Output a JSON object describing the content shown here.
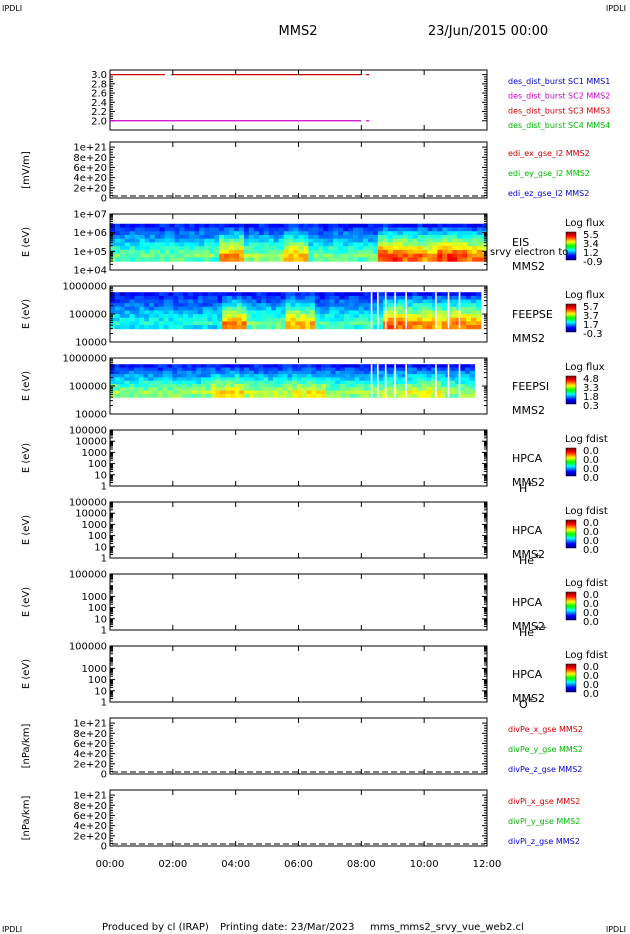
{
  "page": {
    "corner_tl": "IPDLI",
    "corner_tr": "IPDLI",
    "corner_bl": "IPDLI",
    "corner_br": "IPDLI",
    "spacecraft": "MMS2",
    "date": "23/Jun/2015 00:00",
    "footer_left": "Produced by cl (IRAP)",
    "footer_mid": "Printing date: 23/Mar/2023",
    "footer_right": "mms_mms2_srvy_vue_web2.cl"
  },
  "colors": {
    "red": "#cc0000",
    "magenta": "#cc00cc",
    "green": "#00bb00",
    "blue": "#0000cc",
    "dashed": "#000000"
  },
  "chart_data": [
    {
      "id": "burst",
      "type": "line",
      "ylim": [
        1.8,
        3.1
      ],
      "yticks": [
        "3.0",
        "2.8",
        "2.6",
        "2.4",
        "2.2",
        "2.0"
      ],
      "ytick_values": [
        3.0,
        2.8,
        2.6,
        2.4,
        2.2,
        2.0
      ],
      "ylabel": "",
      "legend": [
        {
          "text": "des_dist_burst SC1 MMS1",
          "color": "#0000cc"
        },
        {
          "text": "des_dist_burst SC2 MMS2",
          "color": "#cc00cc"
        },
        {
          "text": "des_dist_burst SC3 MMS3",
          "color": "#cc0000"
        },
        {
          "text": "des_dist_burst SC4 MMS4",
          "color": "#00bb00"
        }
      ],
      "series": [
        {
          "color": "#cc0000",
          "y": 3.0,
          "segments": [
            [
              0.0,
              1.75
            ],
            [
              1.95,
              8.0
            ],
            [
              8.15,
              8.25
            ]
          ]
        },
        {
          "color": "#cc00cc",
          "y": 2.0,
          "segments": [
            [
              0.0,
              8.0
            ],
            [
              8.15,
              8.25
            ]
          ]
        }
      ]
    },
    {
      "id": "edi",
      "type": "line",
      "ylim": [
        0,
        1.1e+21
      ],
      "yticks": [
        "1e+21",
        "8e+20",
        "6e+20",
        "4e+20",
        "2e+20",
        "0"
      ],
      "ytick_values": [
        1e+21,
        8e+20,
        6e+20,
        4e+20,
        2e+20,
        0
      ],
      "ylabel": "[mV/m]",
      "dashed_zero": true,
      "legend": [
        {
          "text": "edi_ex_gse_l2 MMS2",
          "color": "#cc0000"
        },
        {
          "text": "edi_ey_gse_l2 MMS2",
          "color": "#00bb00"
        },
        {
          "text": "edi_ez_gse_l2 MMS2",
          "color": "#0000cc"
        }
      ]
    },
    {
      "id": "eis",
      "type": "heatmap",
      "log": true,
      "ylim": [
        10000,
        10000000
      ],
      "yticks": [
        "1e+07",
        "1e+06",
        "1e+05",
        "1e+04"
      ],
      "ytick_values": [
        10000000.0,
        1000000.0,
        100000.0,
        10000.0
      ],
      "ylabel": "E (eV)",
      "colorbar_title": "Log flux",
      "colorbar_values": [
        "5.5",
        "3.4",
        "1.2",
        "-0.9"
      ],
      "instrument": "EIS",
      "instrument_sub": "srvy electron to",
      "spacecraft": "MMS2",
      "emin": 30000,
      "emax": 3000000,
      "data_end": 12.0,
      "intervals": [
        [
          0.0,
          3.4,
          0.55
        ],
        [
          3.4,
          4.2,
          0.85
        ],
        [
          4.2,
          5.5,
          0.6
        ],
        [
          5.5,
          6.3,
          0.8
        ],
        [
          6.3,
          8.6,
          0.55
        ],
        [
          8.6,
          9.3,
          0.95
        ],
        [
          9.3,
          10.0,
          0.9
        ],
        [
          10.0,
          10.5,
          0.85
        ],
        [
          10.5,
          11.3,
          0.95
        ],
        [
          11.3,
          12.0,
          0.88
        ]
      ]
    },
    {
      "id": "feepse",
      "type": "heatmap",
      "log": true,
      "ylim": [
        10000,
        1000000
      ],
      "yticks": [
        "1000000",
        "100000",
        "10000"
      ],
      "ytick_values": [
        1000000.0,
        100000.0,
        10000.0
      ],
      "ylabel": "E (eV)",
      "colorbar_title": "Log flux",
      "colorbar_values": [
        "5.7",
        "3.7",
        "1.7",
        "-0.3"
      ],
      "instrument": "FEEPSE",
      "spacecraft": "MMS2",
      "emin": 30000,
      "emax": 600000,
      "data_end": 11.8,
      "intervals": [
        [
          0.0,
          3.5,
          0.45
        ],
        [
          3.5,
          4.3,
          0.85
        ],
        [
          4.3,
          5.6,
          0.55
        ],
        [
          5.6,
          6.5,
          0.8
        ],
        [
          6.5,
          8.7,
          0.5
        ],
        [
          8.7,
          9.4,
          0.9
        ],
        [
          9.4,
          10.2,
          0.85
        ],
        [
          10.2,
          10.8,
          0.8
        ],
        [
          10.8,
          11.4,
          0.9
        ],
        [
          11.4,
          11.8,
          0.85
        ]
      ]
    },
    {
      "id": "feepsi",
      "type": "heatmap",
      "log": true,
      "ylim": [
        10000,
        1000000
      ],
      "yticks": [
        "1000000",
        "100000",
        "10000"
      ],
      "ytick_values": [
        1000000.0,
        100000.0,
        10000.0
      ],
      "ylabel": "E (eV)",
      "colorbar_title": "Log flux",
      "colorbar_values": [
        "4.8",
        "3.3",
        "1.8",
        "0.3"
      ],
      "instrument": "FEEPSI",
      "spacecraft": "MMS2",
      "emin": 40000,
      "emax": 600000,
      "data_end": 11.6,
      "intervals": [
        [
          0.0,
          3.2,
          0.6
        ],
        [
          3.2,
          4.3,
          0.75
        ],
        [
          4.3,
          5.8,
          0.65
        ],
        [
          5.8,
          6.8,
          0.72
        ],
        [
          6.8,
          8.5,
          0.6
        ],
        [
          8.5,
          9.5,
          0.65
        ],
        [
          9.5,
          10.6,
          0.7
        ],
        [
          10.6,
          11.6,
          0.62
        ]
      ]
    },
    {
      "id": "hpca_h",
      "type": "heatmap",
      "log": true,
      "ylim": [
        1,
        100000
      ],
      "yticks": [
        "100000",
        "10000",
        "1000",
        "100",
        "10",
        "1"
      ],
      "ytick_values": [
        100000.0,
        10000.0,
        1000.0,
        100.0,
        10,
        1
      ],
      "ylabel": "E (eV)",
      "colorbar_title": "Log fdist",
      "colorbar_values": [
        "0.0",
        "0.0",
        "0.0",
        "0.0"
      ],
      "instrument": "HPCA",
      "spacecraft": "MMS2",
      "species": "H",
      "species_sup": "+"
    },
    {
      "id": "hpca_he",
      "type": "heatmap",
      "log": true,
      "ylim": [
        1,
        100000
      ],
      "yticks": [
        "100000",
        "10000",
        "1000",
        "100",
        "10",
        "1"
      ],
      "ytick_values": [
        100000.0,
        10000.0,
        1000.0,
        100.0,
        10,
        1
      ],
      "ylabel": "E (eV)",
      "colorbar_title": "Log fdist",
      "colorbar_values": [
        "0.0",
        "0.0",
        "0.0",
        "0.0"
      ],
      "instrument": "HPCA",
      "spacecraft": "MMS2",
      "species": "He",
      "species_sup": "+"
    },
    {
      "id": "hpca_hepp",
      "type": "heatmap",
      "log": true,
      "ylim": [
        1,
        100000
      ],
      "yticks": [
        "100000",
        "1000",
        "100",
        "10",
        "1"
      ],
      "ytick_values": [
        100000.0,
        1000.0,
        100.0,
        10,
        1
      ],
      "ylabel": "E (eV)",
      "colorbar_title": "Log fdist",
      "colorbar_values": [
        "0.0",
        "0.0",
        "0.0",
        "0.0"
      ],
      "instrument": "HPCA",
      "spacecraft": "MMS2",
      "species": "He",
      "species_sup": "++"
    },
    {
      "id": "hpca_o",
      "type": "heatmap",
      "log": true,
      "ylim": [
        1,
        100000
      ],
      "yticks": [
        "100000",
        "1000",
        "100",
        "10",
        "1"
      ],
      "ytick_values": [
        100000.0,
        1000.0,
        100.0,
        10,
        1
      ],
      "ylabel": "E (eV)",
      "colorbar_title": "Log fdist",
      "colorbar_values": [
        "0.0",
        "0.0",
        "0.0",
        "0.0"
      ],
      "instrument": "HPCA",
      "spacecraft": "MMS2",
      "species": "O",
      "species_sup": "+"
    },
    {
      "id": "divpe",
      "type": "line",
      "ylim": [
        0,
        1.1e+21
      ],
      "yticks": [
        "1e+21",
        "8e+20",
        "6e+20",
        "4e+20",
        "2e+20",
        "0"
      ],
      "ytick_values": [
        1e+21,
        8e+20,
        6e+20,
        4e+20,
        2e+20,
        0
      ],
      "ylabel": "[nPa/km]",
      "dashed_zero": true,
      "legend": [
        {
          "text": "divPe_x_gse MMS2",
          "color": "#cc0000"
        },
        {
          "text": "divPe_y_gse MMS2",
          "color": "#00bb00"
        },
        {
          "text": "divPe_z_gse MMS2",
          "color": "#0000cc"
        }
      ]
    },
    {
      "id": "divpi",
      "type": "line",
      "ylim": [
        0,
        1.1e+21
      ],
      "yticks": [
        "1e+21",
        "8e+20",
        "6e+20",
        "4e+20",
        "2e+20",
        "0"
      ],
      "ytick_values": [
        1e+21,
        8e+20,
        6e+20,
        4e+20,
        2e+20,
        0
      ],
      "ylabel": "[nPa/km]",
      "dashed_zero": true,
      "legend": [
        {
          "text": "divPi_x_gse MMS2",
          "color": "#cc0000"
        },
        {
          "text": "divPi_y_gse MMS2",
          "color": "#00bb00"
        },
        {
          "text": "divPi_z_gse MMS2",
          "color": "#0000cc"
        }
      ]
    }
  ],
  "xaxis": {
    "range": [
      0,
      12
    ],
    "ticks": [
      "00:00",
      "02:00",
      "04:00",
      "06:00",
      "08:00",
      "10:00",
      "12:00"
    ],
    "tick_values": [
      0,
      2,
      4,
      6,
      8,
      10,
      12
    ]
  }
}
